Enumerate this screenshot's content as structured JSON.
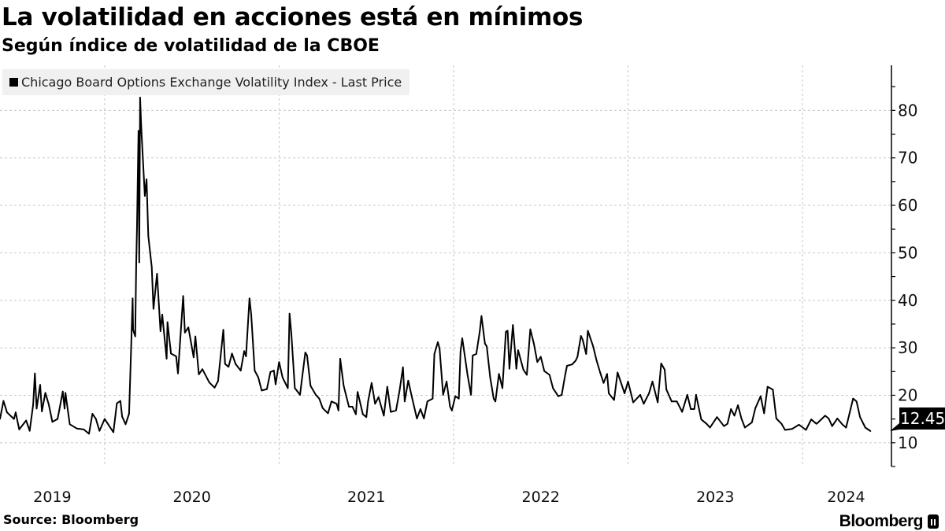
{
  "header": {
    "title": "La volatilidad en acciones está en mínimos",
    "subtitle": "Según índice de volatilidad de la CBOE"
  },
  "footer": {
    "source": "Source: Bloomberg",
    "brand": "Bloomberg"
  },
  "colors": {
    "line": "#000000",
    "grid": "#c8c8c8",
    "legend_bg": "#f0f0f0"
  },
  "chart_data": {
    "type": "line",
    "title": "La volatilidad en acciones está en mínimos",
    "subtitle": "Según índice de volatilidad de la CBOE",
    "xlabel": "",
    "ylabel": "",
    "xlim": [
      2019.4,
      2024.51
    ],
    "ylim": [
      5,
      89.5
    ],
    "y_ticks": [
      10,
      20,
      30,
      40,
      50,
      60,
      70,
      80
    ],
    "y_minor_step": 5,
    "x_year_boundaries": [
      2020,
      2021,
      2022,
      2023,
      2024
    ],
    "x_tick_labels": [
      {
        "label": "2019",
        "at": 2019.7
      },
      {
        "label": "2020",
        "at": 2020.5
      },
      {
        "label": "2021",
        "at": 2021.5
      },
      {
        "label": "2022",
        "at": 2022.5
      },
      {
        "label": "2023",
        "at": 2023.5
      },
      {
        "label": "2024",
        "at": 2024.25
      }
    ],
    "grid": true,
    "legend": {
      "placement": "top-left",
      "entries": [
        "Chicago Board Options Exchange Volatility Index - Last Price"
      ]
    },
    "last_value": {
      "label": "12.45",
      "value": 12.45
    },
    "series": [
      {
        "name": "Chicago Board Options Exchange Volatility Index - Last Price",
        "points": [
          [
            2019.4,
            15.0
          ],
          [
            2019.42,
            18.8
          ],
          [
            2019.44,
            16.4
          ],
          [
            2019.48,
            15.0
          ],
          [
            2019.49,
            16.4
          ],
          [
            2019.51,
            12.8
          ],
          [
            2019.55,
            14.7
          ],
          [
            2019.57,
            12.5
          ],
          [
            2019.59,
            18.0
          ],
          [
            2019.6,
            24.6
          ],
          [
            2019.61,
            17.2
          ],
          [
            2019.63,
            22.2
          ],
          [
            2019.64,
            16.6
          ],
          [
            2019.66,
            20.5
          ],
          [
            2019.68,
            18.0
          ],
          [
            2019.7,
            14.4
          ],
          [
            2019.73,
            15.0
          ],
          [
            2019.74,
            16.9
          ],
          [
            2019.76,
            20.8
          ],
          [
            2019.77,
            17.2
          ],
          [
            2019.775,
            20.5
          ],
          [
            2019.8,
            13.9
          ],
          [
            2019.84,
            13.0
          ],
          [
            2019.88,
            12.8
          ],
          [
            2019.91,
            11.9
          ],
          [
            2019.93,
            16.1
          ],
          [
            2019.95,
            15.0
          ],
          [
            2019.97,
            12.5
          ],
          [
            2020.0,
            15.0
          ],
          [
            2020.02,
            13.9
          ],
          [
            2020.05,
            12.2
          ],
          [
            2020.07,
            18.3
          ],
          [
            2020.09,
            18.8
          ],
          [
            2020.1,
            15.5
          ],
          [
            2020.12,
            13.9
          ],
          [
            2020.14,
            16.1
          ],
          [
            2020.15,
            27.7
          ],
          [
            2020.16,
            40.4
          ],
          [
            2020.163,
            33.8
          ],
          [
            2020.175,
            32.4
          ],
          [
            2020.181,
            48.1
          ],
          [
            2020.185,
            54.8
          ],
          [
            2020.194,
            75.7
          ],
          [
            2020.198,
            48.0
          ],
          [
            2020.203,
            82.7
          ],
          [
            2020.21,
            76.3
          ],
          [
            2020.23,
            62.0
          ],
          [
            2020.24,
            65.5
          ],
          [
            2020.25,
            53.6
          ],
          [
            2020.27,
            47.0
          ],
          [
            2020.28,
            38.2
          ],
          [
            2020.3,
            45.6
          ],
          [
            2020.32,
            33.5
          ],
          [
            2020.33,
            37.0
          ],
          [
            2020.355,
            27.7
          ],
          [
            2020.36,
            35.4
          ],
          [
            2020.38,
            28.8
          ],
          [
            2020.41,
            28.2
          ],
          [
            2020.42,
            24.6
          ],
          [
            2020.45,
            40.9
          ],
          [
            2020.46,
            33.2
          ],
          [
            2020.48,
            34.3
          ],
          [
            2020.51,
            28.0
          ],
          [
            2020.52,
            32.4
          ],
          [
            2020.54,
            24.4
          ],
          [
            2020.56,
            25.5
          ],
          [
            2020.6,
            22.7
          ],
          [
            2020.63,
            21.6
          ],
          [
            2020.65,
            23.0
          ],
          [
            2020.68,
            33.8
          ],
          [
            2020.69,
            26.6
          ],
          [
            2020.71,
            26.0
          ],
          [
            2020.73,
            28.8
          ],
          [
            2020.75,
            26.6
          ],
          [
            2020.78,
            25.2
          ],
          [
            2020.8,
            29.3
          ],
          [
            2020.81,
            28.2
          ],
          [
            2020.83,
            40.4
          ],
          [
            2020.84,
            37.0
          ],
          [
            2020.86,
            25.2
          ],
          [
            2020.88,
            23.8
          ],
          [
            2020.9,
            21.0
          ],
          [
            2020.93,
            21.3
          ],
          [
            2020.95,
            24.9
          ],
          [
            2020.97,
            25.2
          ],
          [
            2020.98,
            22.3
          ],
          [
            2021.0,
            27.0
          ],
          [
            2021.02,
            23.7
          ],
          [
            2021.05,
            21.5
          ],
          [
            2021.06,
            37.2
          ],
          [
            2021.07,
            33.1
          ],
          [
            2021.09,
            21.5
          ],
          [
            2021.12,
            20.1
          ],
          [
            2021.13,
            23.1
          ],
          [
            2021.15,
            29.0
          ],
          [
            2021.16,
            28.4
          ],
          [
            2021.18,
            22.0
          ],
          [
            2021.21,
            20.1
          ],
          [
            2021.23,
            19.3
          ],
          [
            2021.25,
            17.3
          ],
          [
            2021.28,
            16.2
          ],
          [
            2021.3,
            18.7
          ],
          [
            2021.33,
            18.2
          ],
          [
            2021.34,
            16.8
          ],
          [
            2021.35,
            27.7
          ],
          [
            2021.37,
            22.0
          ],
          [
            2021.4,
            17.6
          ],
          [
            2021.42,
            17.6
          ],
          [
            2021.44,
            16.0
          ],
          [
            2021.45,
            20.7
          ],
          [
            2021.48,
            16.0
          ],
          [
            2021.5,
            15.4
          ],
          [
            2021.51,
            18.7
          ],
          [
            2021.53,
            22.6
          ],
          [
            2021.55,
            18.2
          ],
          [
            2021.57,
            19.6
          ],
          [
            2021.6,
            15.7
          ],
          [
            2021.62,
            21.8
          ],
          [
            2021.64,
            16.5
          ],
          [
            2021.67,
            16.8
          ],
          [
            2021.69,
            20.9
          ],
          [
            2021.71,
            25.9
          ],
          [
            2021.72,
            18.7
          ],
          [
            2021.74,
            23.1
          ],
          [
            2021.76,
            19.8
          ],
          [
            2021.79,
            15.1
          ],
          [
            2021.81,
            17.1
          ],
          [
            2021.83,
            15.1
          ],
          [
            2021.85,
            18.7
          ],
          [
            2021.88,
            19.3
          ],
          [
            2021.89,
            28.7
          ],
          [
            2021.91,
            31.2
          ],
          [
            2021.92,
            29.8
          ],
          [
            2021.94,
            20.1
          ],
          [
            2021.96,
            22.9
          ],
          [
            2021.98,
            17.6
          ],
          [
            2021.99,
            16.8
          ],
          [
            2022.01,
            19.8
          ],
          [
            2022.03,
            19.3
          ],
          [
            2022.04,
            29.2
          ],
          [
            2022.05,
            32.0
          ],
          [
            2022.08,
            24.3
          ],
          [
            2022.1,
            20.1
          ],
          [
            2022.11,
            28.4
          ],
          [
            2022.13,
            28.7
          ],
          [
            2022.15,
            33.4
          ],
          [
            2022.16,
            36.7
          ],
          [
            2022.18,
            30.9
          ],
          [
            2022.19,
            30.3
          ],
          [
            2022.21,
            23.7
          ],
          [
            2022.23,
            19.3
          ],
          [
            2022.24,
            18.7
          ],
          [
            2022.26,
            24.5
          ],
          [
            2022.28,
            21.5
          ],
          [
            2022.3,
            33.4
          ],
          [
            2022.31,
            33.6
          ],
          [
            2022.32,
            25.6
          ],
          [
            2022.34,
            34.8
          ],
          [
            2022.36,
            25.6
          ],
          [
            2022.37,
            29.5
          ],
          [
            2022.4,
            25.4
          ],
          [
            2022.42,
            24.3
          ],
          [
            2022.44,
            33.9
          ],
          [
            2022.46,
            30.9
          ],
          [
            2022.48,
            27.0
          ],
          [
            2022.5,
            28.1
          ],
          [
            2022.52,
            25.1
          ],
          [
            2022.55,
            24.3
          ],
          [
            2022.57,
            21.5
          ],
          [
            2022.6,
            19.8
          ],
          [
            2022.62,
            20.1
          ],
          [
            2022.64,
            24.3
          ],
          [
            2022.65,
            26.2
          ],
          [
            2022.68,
            26.5
          ],
          [
            2022.7,
            27.3
          ],
          [
            2022.71,
            28.1
          ],
          [
            2022.73,
            32.5
          ],
          [
            2022.74,
            31.7
          ],
          [
            2022.76,
            28.7
          ],
          [
            2022.77,
            33.6
          ],
          [
            2022.8,
            30.3
          ],
          [
            2022.82,
            27.3
          ],
          [
            2022.84,
            24.8
          ],
          [
            2022.86,
            22.6
          ],
          [
            2022.88,
            24.5
          ],
          [
            2022.89,
            20.4
          ],
          [
            2022.92,
            19.0
          ],
          [
            2022.94,
            24.8
          ],
          [
            2022.98,
            20.4
          ],
          [
            2023.0,
            22.9
          ],
          [
            2023.03,
            18.5
          ],
          [
            2023.07,
            20.1
          ],
          [
            2023.09,
            18.2
          ],
          [
            2023.12,
            20.4
          ],
          [
            2023.14,
            22.9
          ],
          [
            2023.17,
            18.5
          ],
          [
            2023.19,
            26.7
          ],
          [
            2023.21,
            25.4
          ],
          [
            2023.22,
            21.2
          ],
          [
            2023.25,
            18.7
          ],
          [
            2023.28,
            18.7
          ],
          [
            2023.31,
            16.5
          ],
          [
            2023.34,
            20.1
          ],
          [
            2023.36,
            17.1
          ],
          [
            2023.38,
            17.1
          ],
          [
            2023.39,
            20.1
          ],
          [
            2023.42,
            14.9
          ],
          [
            2023.45,
            14.0
          ],
          [
            2023.47,
            13.2
          ],
          [
            2023.51,
            15.4
          ],
          [
            2023.55,
            13.5
          ],
          [
            2023.57,
            14.0
          ],
          [
            2023.59,
            17.1
          ],
          [
            2023.61,
            15.7
          ],
          [
            2023.63,
            17.9
          ],
          [
            2023.65,
            15.1
          ],
          [
            2023.67,
            13.2
          ],
          [
            2023.71,
            14.3
          ],
          [
            2023.73,
            17.3
          ],
          [
            2023.76,
            19.8
          ],
          [
            2023.78,
            16.2
          ],
          [
            2023.8,
            21.8
          ],
          [
            2023.83,
            21.2
          ],
          [
            2023.85,
            15.1
          ],
          [
            2023.88,
            14.0
          ],
          [
            2023.9,
            12.7
          ],
          [
            2023.94,
            12.9
          ],
          [
            2023.98,
            13.8
          ],
          [
            2024.02,
            12.7
          ],
          [
            2024.05,
            14.9
          ],
          [
            2024.08,
            14.0
          ],
          [
            2024.09,
            14.3
          ],
          [
            2024.13,
            15.7
          ],
          [
            2024.15,
            15.1
          ],
          [
            2024.17,
            13.5
          ],
          [
            2024.2,
            15.1
          ],
          [
            2024.23,
            13.8
          ],
          [
            2024.25,
            13.2
          ],
          [
            2024.27,
            16.2
          ],
          [
            2024.29,
            19.3
          ],
          [
            2024.31,
            18.7
          ],
          [
            2024.33,
            15.4
          ],
          [
            2024.36,
            13.2
          ],
          [
            2024.38,
            12.7
          ],
          [
            2024.39,
            12.45
          ]
        ]
      }
    ]
  }
}
